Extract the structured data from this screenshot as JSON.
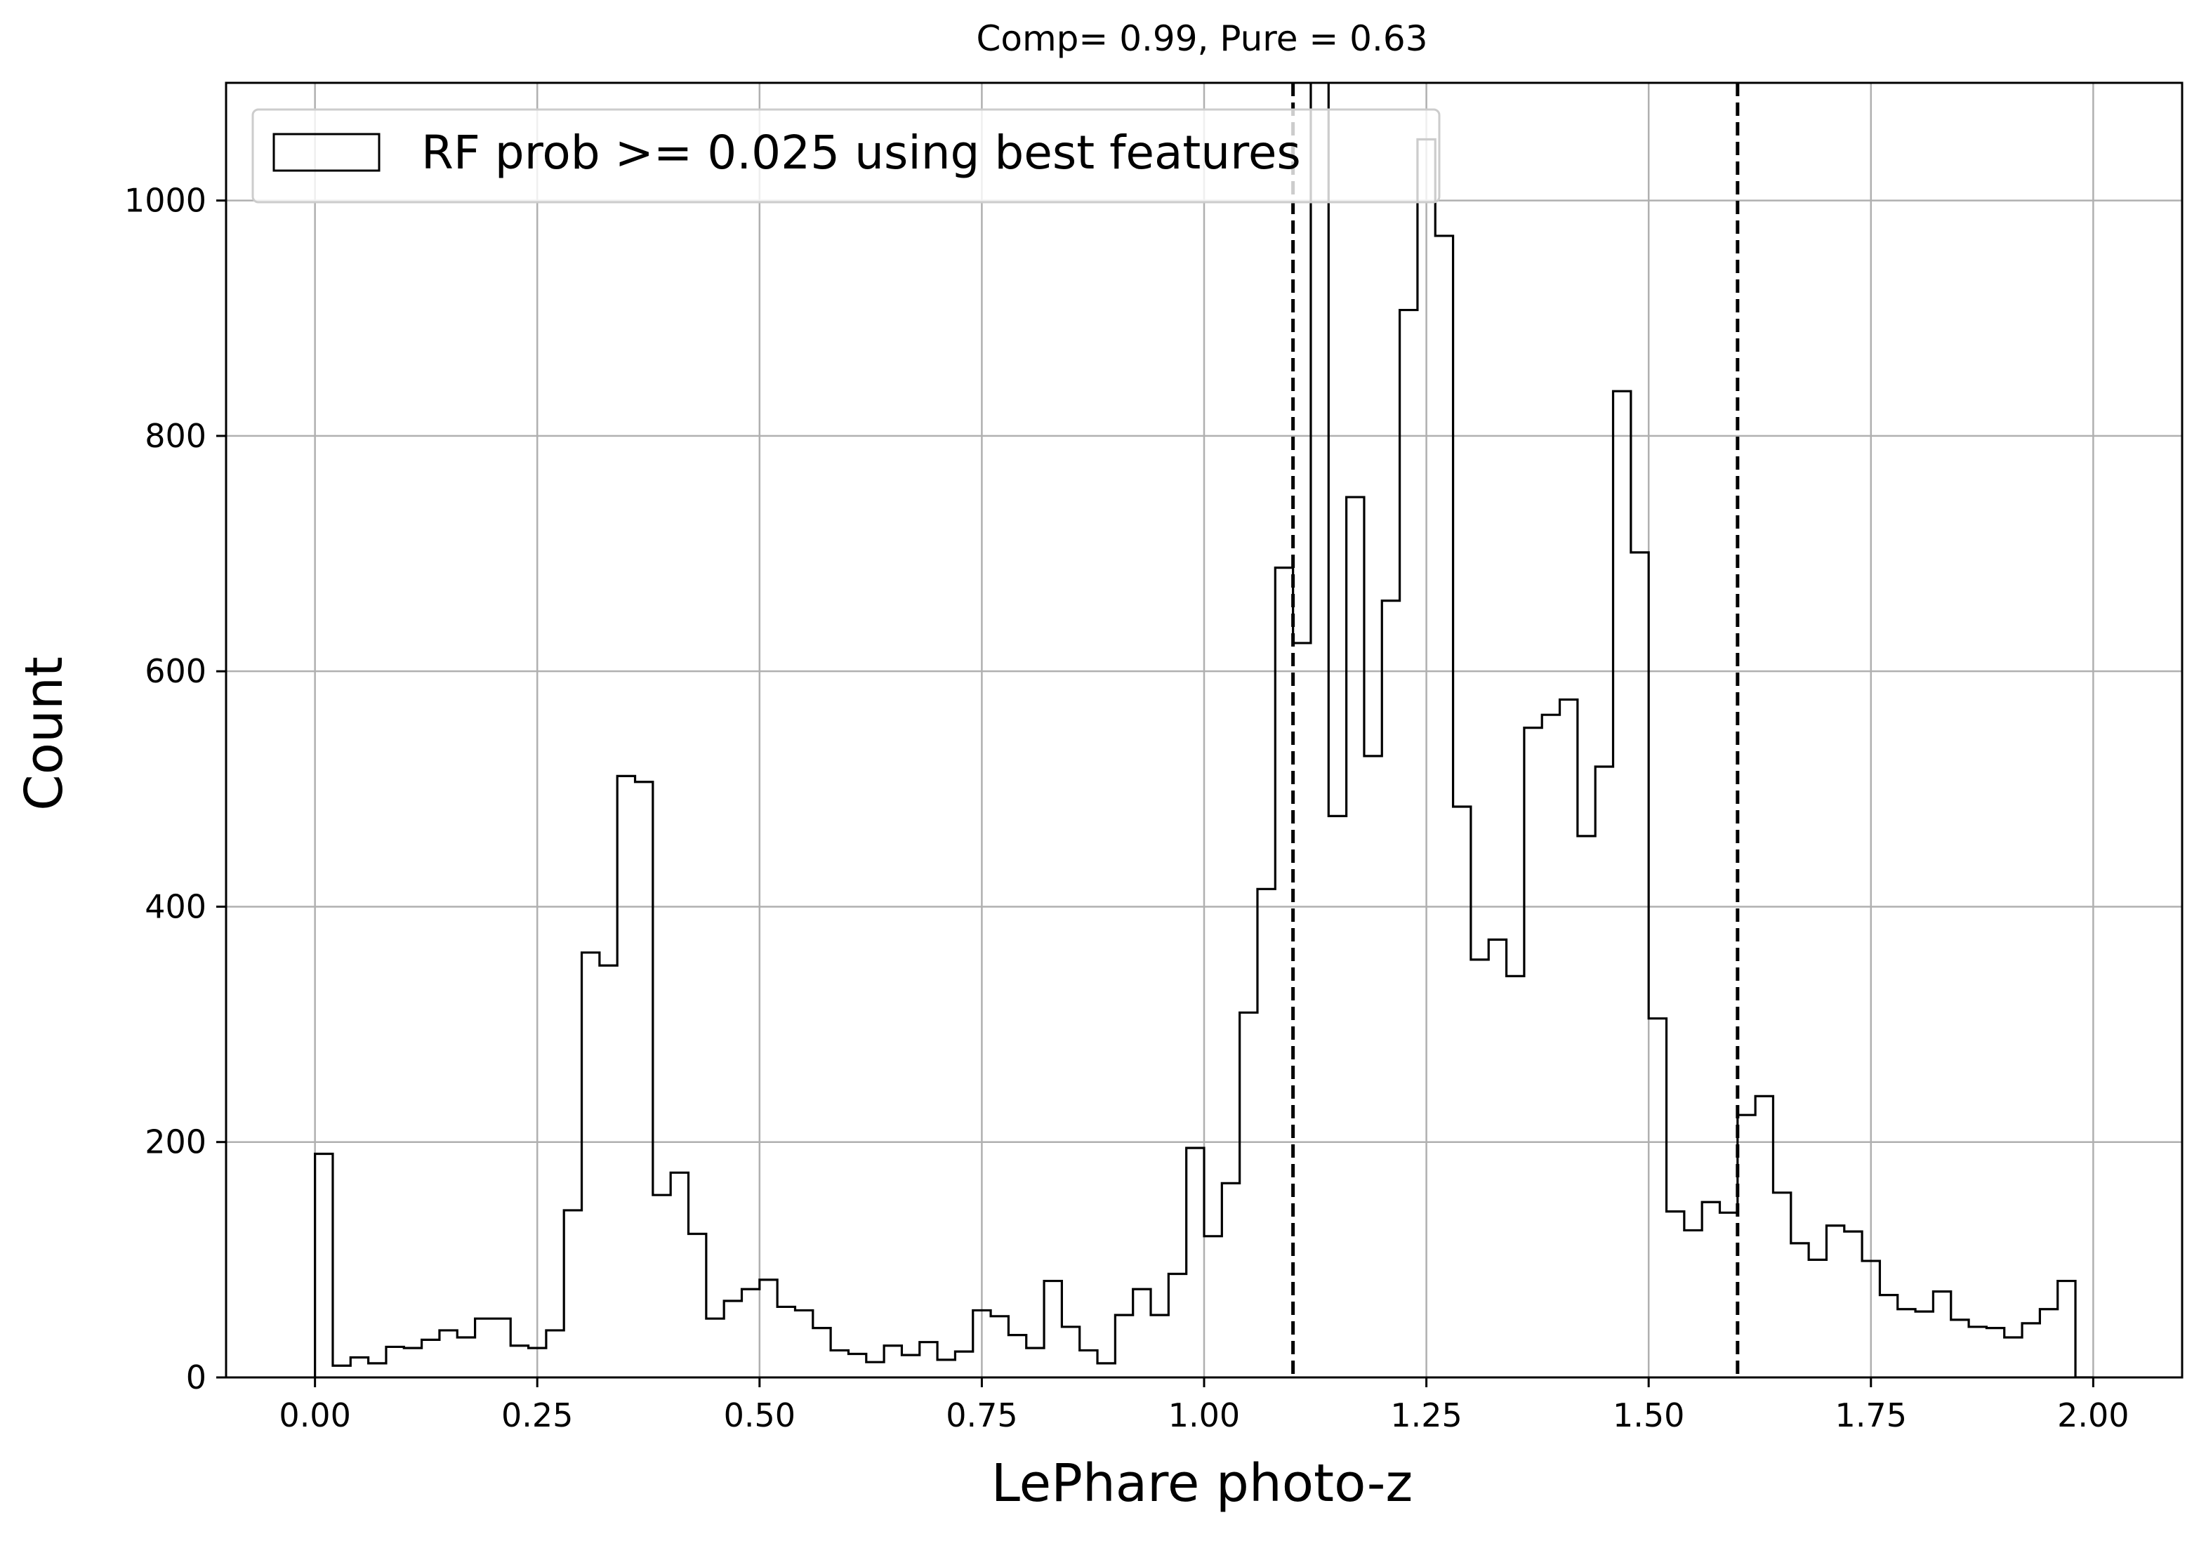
{
  "chart_data": {
    "type": "histogram",
    "title": "Comp= 0.99, Pure = 0.63",
    "xlabel": "LePhare photo-z",
    "ylabel": "Count",
    "xlim": [
      -0.1,
      2.1
    ],
    "ylim": [
      0,
      1100
    ],
    "xticks": [
      0.0,
      0.25,
      0.5,
      0.75,
      1.0,
      1.25,
      1.5,
      1.75,
      2.0
    ],
    "xtick_labels": [
      "0.00",
      "0.25",
      "0.50",
      "0.75",
      "1.00",
      "1.25",
      "1.50",
      "1.75",
      "2.00"
    ],
    "yticks": [
      0,
      200,
      400,
      600,
      800,
      1000
    ],
    "ytick_labels": [
      "0",
      "200",
      "400",
      "600",
      "800",
      "1000"
    ],
    "grid": true,
    "legend_position": "top-left",
    "legend": [
      "RF prob >= 0.025 using best features"
    ],
    "histtype": "step",
    "line_color": "#000000",
    "bin_range": [
      0.0,
      2.0
    ],
    "bin_width": 0.02,
    "series": [
      {
        "name": "RF prob >= 0.025 using best features",
        "counts": [
          190,
          10,
          17,
          12,
          26,
          25,
          32,
          40,
          34,
          50,
          50,
          27,
          25,
          40,
          142,
          361,
          350,
          511,
          506,
          155,
          174,
          122,
          50,
          65,
          75,
          83,
          60,
          57,
          42,
          23,
          20,
          13,
          27,
          19,
          30,
          15,
          22,
          57,
          52,
          36,
          25,
          82,
          43,
          23,
          12,
          53,
          75,
          53,
          88,
          195,
          120,
          165,
          310,
          415,
          688,
          624,
          1110,
          477,
          748,
          528,
          660,
          907,
          1052,
          970,
          485,
          355,
          372,
          341,
          552,
          563,
          576,
          460,
          519,
          838,
          701,
          305,
          141,
          125,
          149,
          140,
          223,
          239,
          157,
          114,
          100,
          129,
          124,
          99,
          70,
          58,
          56,
          73,
          49,
          43,
          42,
          34,
          46,
          58,
          82,
          0
        ]
      }
    ],
    "vlines": [
      {
        "x": 1.1,
        "style": "dashed",
        "color": "#000000"
      },
      {
        "x": 1.6,
        "style": "dashed",
        "color": "#000000"
      }
    ]
  }
}
